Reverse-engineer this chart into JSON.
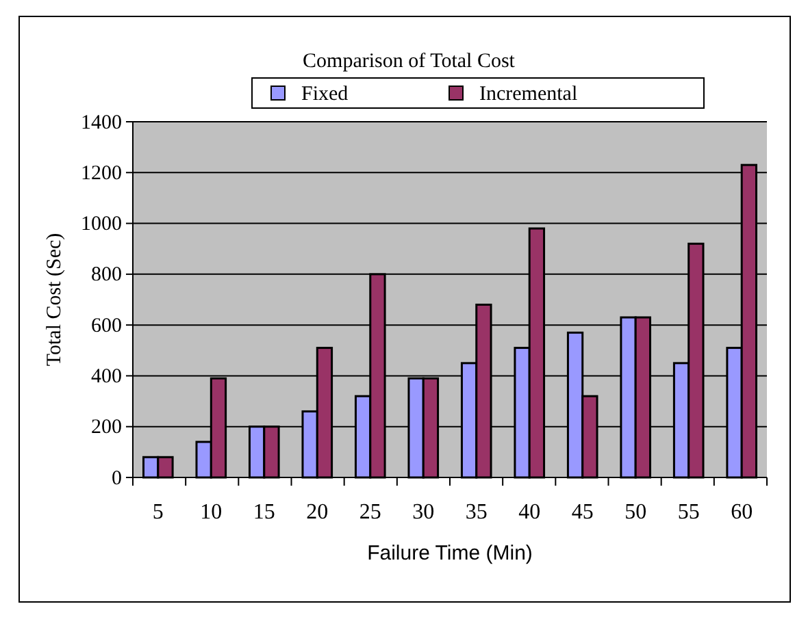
{
  "chart_data": {
    "type": "bar",
    "title": "Comparison of Total Cost",
    "xlabel": "Failure Time (Min)",
    "ylabel": "Total Cost  (Sec)",
    "categories": [
      "5",
      "10",
      "15",
      "20",
      "25",
      "30",
      "35",
      "40",
      "45",
      "50",
      "55",
      "60"
    ],
    "series": [
      {
        "name": "Fixed",
        "color": "#9999ff",
        "values": [
          80,
          140,
          200,
          260,
          320,
          390,
          450,
          510,
          570,
          630,
          450,
          510
        ]
      },
      {
        "name": "Incremental",
        "color": "#993366",
        "values": [
          80,
          390,
          200,
          510,
          800,
          390,
          680,
          980,
          320,
          630,
          920,
          1230
        ]
      }
    ],
    "ylim": [
      0,
      1400
    ],
    "yticks": [
      0,
      200,
      400,
      600,
      800,
      1000,
      1200,
      1400
    ],
    "grid": "y",
    "legend": "top"
  }
}
